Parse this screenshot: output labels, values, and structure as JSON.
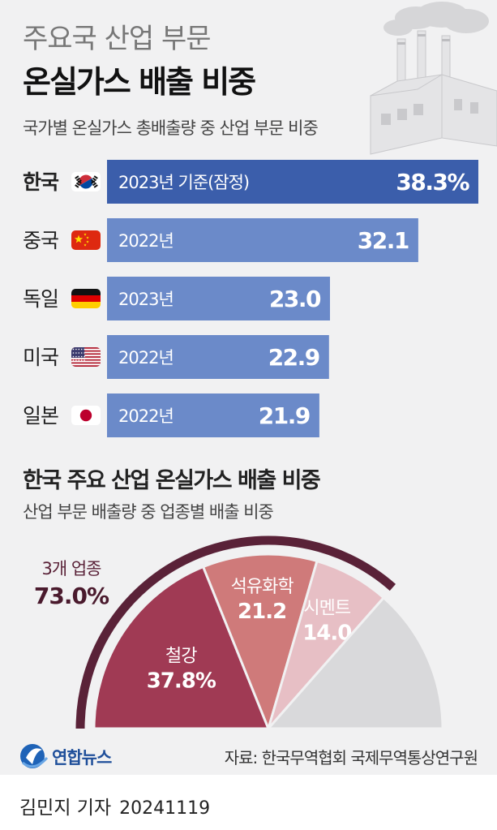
{
  "header": {
    "title_line1": "주요국 산업 부문",
    "title_line2": "온실가스 배출 비중",
    "subtitle": "국가별 온실가스 총배출량 중 산업 부문 비중"
  },
  "section2": {
    "title": "한국 주요 산업 온실가스 배출 비중",
    "subtitle": "산업 부문 배출량 중 업종별 배출 비중"
  },
  "footer": {
    "logo_text": "연합뉴스",
    "source": "자료: 한국무역협회 국제무역통상연구원",
    "reporter": "김민지 기자",
    "date": "20241119"
  },
  "colors": {
    "highlight_bar": "#3b5eab",
    "bar": "#6b8ac9",
    "steel": "#a03a54",
    "petrochem": "#cf7a7a",
    "cement": "#e7bfc5",
    "other": "#d9d9db",
    "arc": "#5a2238"
  },
  "chart_data": [
    {
      "type": "bar",
      "orientation": "horizontal",
      "categories": [
        "한국",
        "중국",
        "독일",
        "미국",
        "일본"
      ],
      "flags": [
        "korea-flag-icon",
        "china-flag-icon",
        "germany-flag-icon",
        "usa-flag-icon",
        "japan-flag-icon"
      ],
      "year_labels": [
        "2023년 기준(잠정)",
        "2022년",
        "2023년",
        "2022년",
        "2022년"
      ],
      "values": [
        38.3,
        32.1,
        23.0,
        22.9,
        21.9
      ],
      "value_labels": [
        "38.3%",
        "32.1",
        "23.0",
        "22.9",
        "21.9"
      ],
      "highlight": "한국",
      "xlim": [
        0,
        38.3
      ]
    },
    {
      "type": "pie",
      "shape": "semicircle",
      "slices": [
        {
          "label": "철강",
          "value": 37.8,
          "value_label": "37.8%"
        },
        {
          "label": "석유화학",
          "value": 21.2,
          "value_label": "21.2"
        },
        {
          "label": "시멘트",
          "value": 14.0,
          "value_label": "14.0"
        },
        {
          "label": "",
          "value": 27.0,
          "value_label": ""
        }
      ],
      "group": {
        "label": "3개 업종",
        "value": 73.0,
        "value_label": "73.0%"
      }
    }
  ]
}
